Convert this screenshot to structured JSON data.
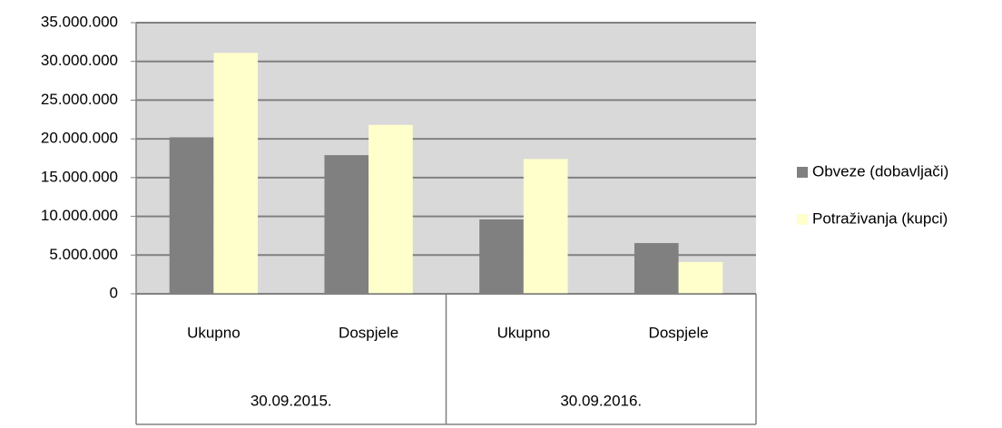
{
  "chart_data": {
    "type": "bar",
    "categories": [
      "Ukupno",
      "Dospjele",
      "Ukupno",
      "Dospjele"
    ],
    "groups": [
      "30.09.2015.",
      "30.09.2016."
    ],
    "series": [
      {
        "name": "Obveze (dobavljači)",
        "color": "#808080",
        "values": [
          20200000,
          17900000,
          9600000,
          6550000
        ]
      },
      {
        "name": "Potraživanja (kupci)",
        "color": "#ffffcc",
        "values": [
          31100000,
          21800000,
          17400000,
          4100000
        ]
      }
    ],
    "ylim": [
      0,
      35000000
    ],
    "yticks": [
      0,
      {
        "value": 5000000,
        "label": "5.000.000"
      },
      {
        "value": 10000000,
        "label": "10.000.000"
      },
      {
        "value": 15000000,
        "label": "15.000.000"
      },
      {
        "value": 20000000,
        "label": "20.000.000"
      },
      {
        "value": 25000000,
        "label": "25.000.000"
      },
      {
        "value": 30000000,
        "label": "30.000.000"
      },
      {
        "value": 35000000,
        "label": "35.000.000"
      }
    ],
    "grid": true,
    "legend": "right"
  }
}
